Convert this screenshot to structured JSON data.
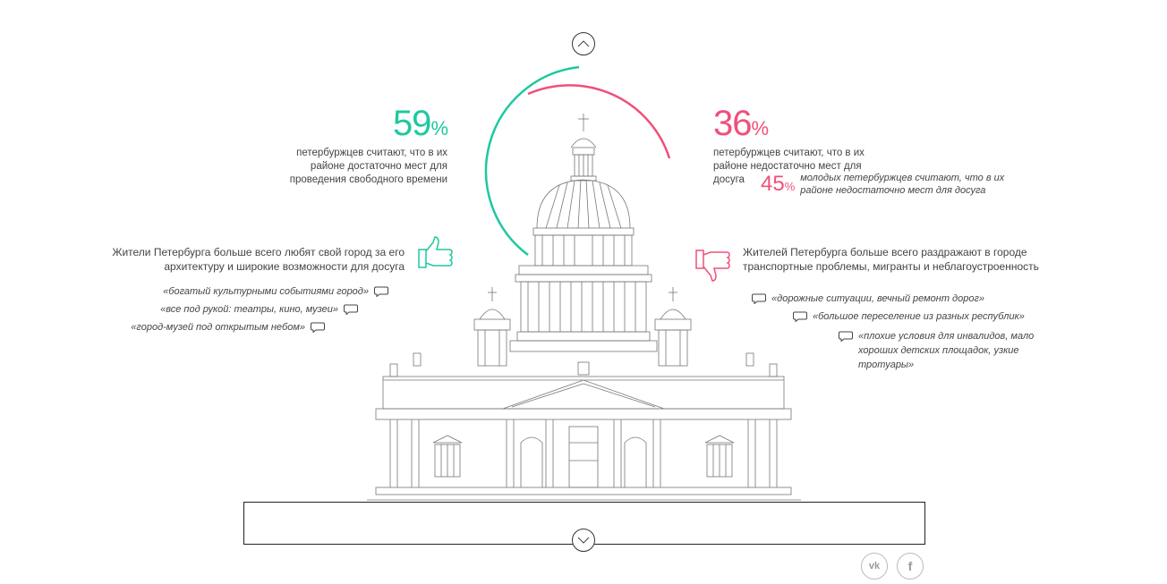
{
  "left_stat": {
    "value": "59",
    "unit": "%",
    "description": "петербуржцев считают, что в их районе достаточно мест для проведения свободного времени",
    "color": "#1ec8a0"
  },
  "right_stat": {
    "value": "36",
    "unit": "%",
    "description": "петербуржцев считают, что в их районе недостаточно мест для досуга",
    "color": "#f0507a"
  },
  "youth_stat": {
    "value": "45",
    "unit": "%",
    "description": "молодых петербуржцев считают, что в их районе недостаточно мест для досуга"
  },
  "likes": {
    "heading": "Жители Петербурга больше всего любят свой город за его архитектуру и широкие возможности для досуга",
    "quotes": [
      "«богатый культурными событиями город»",
      "«все под рукой: театры, кино, музеи»",
      "«город-музей под открытым небом»"
    ]
  },
  "dislikes": {
    "heading": "Жителей Петербурга больше всего раздражают в городе транспортные проблемы, мигранты и неблагоустроенность",
    "quotes": [
      "«дорожные ситуации, вечный ремонт дорог»",
      "«большое переселение из разных республик»",
      "«плохие условия для инвалидов, мало хороших детских площадок, узкие тротуары»"
    ]
  },
  "social": {
    "vk": "vk",
    "fb": "f"
  }
}
